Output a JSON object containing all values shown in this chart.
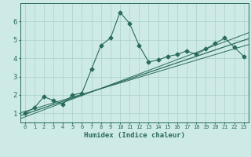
{
  "xlabel": "Humidex (Indice chaleur)",
  "bg_color": "#ceeae6",
  "grid_color": "#aacfcb",
  "line_color": "#2a6b5e",
  "x_data": [
    0,
    1,
    2,
    3,
    4,
    5,
    6,
    7,
    8,
    9,
    10,
    11,
    12,
    13,
    14,
    15,
    16,
    17,
    18,
    19,
    20,
    21,
    22,
    23
  ],
  "y_data": [
    1.0,
    1.3,
    1.9,
    1.7,
    1.5,
    2.0,
    2.1,
    3.4,
    4.7,
    5.1,
    6.5,
    5.9,
    4.7,
    3.8,
    3.9,
    4.1,
    4.2,
    4.4,
    4.2,
    4.5,
    4.8,
    5.1,
    4.6,
    4.1
  ],
  "xlim": [
    -0.5,
    23.5
  ],
  "ylim": [
    0.5,
    7.0
  ],
  "yticks": [
    1,
    2,
    3,
    4,
    5,
    6
  ],
  "xticks": [
    0,
    1,
    2,
    3,
    4,
    5,
    6,
    7,
    8,
    9,
    10,
    11,
    12,
    13,
    14,
    15,
    16,
    17,
    18,
    19,
    20,
    21,
    22,
    23
  ],
  "marker": "D",
  "marker_size": 2.5,
  "line_width": 0.8,
  "reg_line_color": "#2a6b5e",
  "reg_slopes": [
    0.155,
    0.175,
    0.195
  ],
  "reg_intercepts": [
    1.1,
    0.95,
    0.8
  ]
}
